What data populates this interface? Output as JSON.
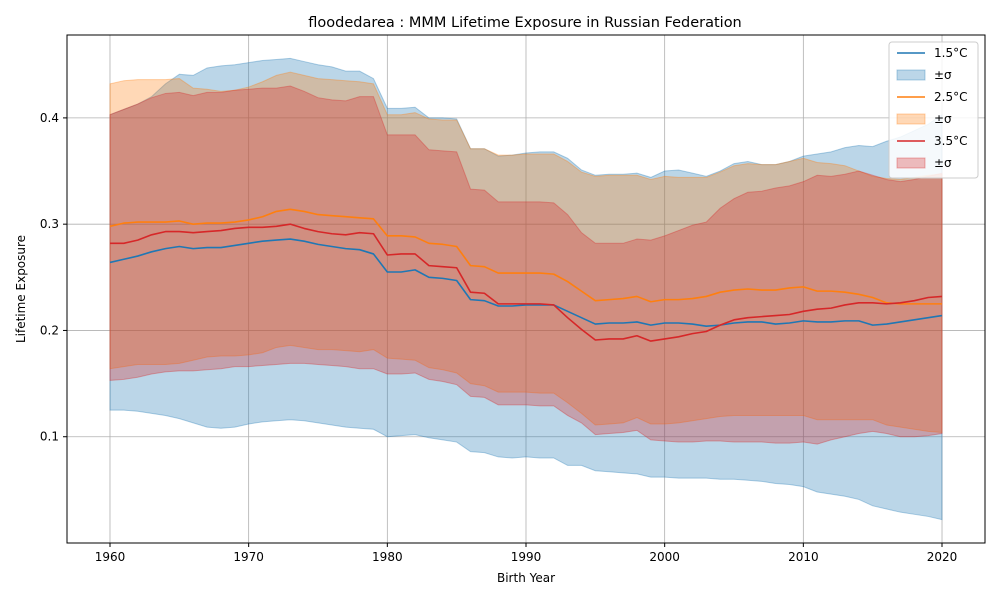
{
  "chart_data": {
    "type": "line",
    "title": "floodedarea : MMM Lifetime Exposure in Russian Federation",
    "xlabel": "Birth Year",
    "ylabel": "Lifetime Exposure",
    "xlim": [
      1956.9,
      2023.1
    ],
    "ylim": [
      0.0,
      0.478
    ],
    "grid": true,
    "legend_position": "top-right",
    "x_ticks": [
      1960,
      1970,
      1980,
      1990,
      2000,
      2010,
      2020
    ],
    "x_tick_labels": [
      "1960",
      "1970",
      "1980",
      "1990",
      "2000",
      "2010",
      "2020"
    ],
    "y_ticks": [
      0.1,
      0.2,
      0.3,
      0.4
    ],
    "y_tick_labels": [
      "0.1",
      "0.2",
      "0.3",
      "0.4"
    ],
    "x": [
      1960,
      1961,
      1962,
      1963,
      1964,
      1965,
      1966,
      1967,
      1968,
      1969,
      1970,
      1971,
      1972,
      1973,
      1974,
      1975,
      1976,
      1977,
      1978,
      1979,
      1980,
      1981,
      1982,
      1983,
      1984,
      1985,
      1986,
      1987,
      1988,
      1989,
      1990,
      1991,
      1992,
      1993,
      1994,
      1995,
      1996,
      1997,
      1998,
      1999,
      2000,
      2001,
      2002,
      2003,
      2004,
      2005,
      2006,
      2007,
      2008,
      2009,
      2010,
      2011,
      2012,
      2013,
      2014,
      2015,
      2016,
      2017,
      2018,
      2019,
      2020
    ],
    "series": [
      {
        "name": "1.5°C",
        "color": "#1f77b4",
        "band_label": "±σ",
        "mean": [
          0.264,
          0.267,
          0.27,
          0.274,
          0.277,
          0.279,
          0.277,
          0.278,
          0.278,
          0.28,
          0.282,
          0.284,
          0.285,
          0.286,
          0.284,
          0.281,
          0.279,
          0.277,
          0.276,
          0.272,
          0.255,
          0.255,
          0.257,
          0.25,
          0.249,
          0.247,
          0.229,
          0.228,
          0.223,
          0.223,
          0.224,
          0.224,
          0.224,
          0.218,
          0.212,
          0.206,
          0.207,
          0.207,
          0.208,
          0.205,
          0.207,
          0.207,
          0.206,
          0.204,
          0.205,
          0.207,
          0.208,
          0.208,
          0.206,
          0.207,
          0.209,
          0.208,
          0.208,
          0.209,
          0.209,
          0.205,
          0.206,
          0.208,
          0.21,
          0.212,
          0.214
        ],
        "upper": [
          0.403,
          0.408,
          0.413,
          0.42,
          0.432,
          0.441,
          0.44,
          0.447,
          0.449,
          0.45,
          0.452,
          0.454,
          0.455,
          0.456,
          0.453,
          0.45,
          0.448,
          0.444,
          0.444,
          0.437,
          0.409,
          0.409,
          0.41,
          0.4,
          0.4,
          0.399,
          0.371,
          0.371,
          0.364,
          0.365,
          0.367,
          0.368,
          0.368,
          0.362,
          0.351,
          0.346,
          0.347,
          0.347,
          0.348,
          0.344,
          0.35,
          0.351,
          0.348,
          0.345,
          0.35,
          0.357,
          0.359,
          0.356,
          0.356,
          0.359,
          0.364,
          0.366,
          0.368,
          0.372,
          0.374,
          0.373,
          0.378,
          0.382,
          0.388,
          0.394,
          0.403
        ],
        "lower": [
          0.125,
          0.125,
          0.124,
          0.122,
          0.12,
          0.117,
          0.113,
          0.109,
          0.108,
          0.109,
          0.112,
          0.114,
          0.115,
          0.116,
          0.115,
          0.113,
          0.111,
          0.109,
          0.108,
          0.107,
          0.1,
          0.101,
          0.102,
          0.099,
          0.097,
          0.095,
          0.086,
          0.085,
          0.081,
          0.08,
          0.081,
          0.08,
          0.08,
          0.073,
          0.073,
          0.068,
          0.067,
          0.066,
          0.065,
          0.062,
          0.062,
          0.061,
          0.061,
          0.061,
          0.06,
          0.06,
          0.059,
          0.058,
          0.056,
          0.055,
          0.053,
          0.048,
          0.046,
          0.044,
          0.041,
          0.035,
          0.032,
          0.029,
          0.027,
          0.025,
          0.022
        ]
      },
      {
        "name": "2.5°C",
        "color": "#ff7f0e",
        "band_label": "±σ",
        "mean": [
          0.298,
          0.301,
          0.302,
          0.302,
          0.302,
          0.303,
          0.3,
          0.301,
          0.301,
          0.302,
          0.304,
          0.307,
          0.312,
          0.314,
          0.312,
          0.309,
          0.308,
          0.307,
          0.306,
          0.305,
          0.289,
          0.289,
          0.288,
          0.282,
          0.281,
          0.279,
          0.261,
          0.26,
          0.254,
          0.254,
          0.254,
          0.254,
          0.253,
          0.246,
          0.237,
          0.228,
          0.229,
          0.23,
          0.232,
          0.227,
          0.229,
          0.229,
          0.23,
          0.232,
          0.236,
          0.238,
          0.239,
          0.238,
          0.238,
          0.24,
          0.241,
          0.237,
          0.237,
          0.236,
          0.234,
          0.231,
          0.226,
          0.225,
          0.225,
          0.225,
          0.225
        ],
        "upper": [
          0.432,
          0.435,
          0.436,
          0.436,
          0.436,
          0.437,
          0.428,
          0.427,
          0.425,
          0.426,
          0.429,
          0.434,
          0.44,
          0.443,
          0.44,
          0.437,
          0.436,
          0.435,
          0.434,
          0.432,
          0.403,
          0.403,
          0.405,
          0.399,
          0.398,
          0.398,
          0.371,
          0.371,
          0.365,
          0.365,
          0.366,
          0.366,
          0.366,
          0.359,
          0.349,
          0.345,
          0.346,
          0.346,
          0.346,
          0.342,
          0.345,
          0.344,
          0.344,
          0.344,
          0.349,
          0.355,
          0.357,
          0.356,
          0.356,
          0.359,
          0.362,
          0.358,
          0.357,
          0.355,
          0.35,
          0.345,
          0.343,
          0.342,
          0.344,
          0.346,
          0.347
        ],
        "lower": [
          0.164,
          0.166,
          0.168,
          0.168,
          0.168,
          0.169,
          0.172,
          0.175,
          0.176,
          0.176,
          0.177,
          0.179,
          0.184,
          0.186,
          0.184,
          0.182,
          0.182,
          0.181,
          0.18,
          0.182,
          0.174,
          0.173,
          0.172,
          0.165,
          0.163,
          0.16,
          0.15,
          0.148,
          0.142,
          0.142,
          0.142,
          0.141,
          0.141,
          0.132,
          0.122,
          0.111,
          0.112,
          0.113,
          0.118,
          0.112,
          0.112,
          0.113,
          0.115,
          0.117,
          0.119,
          0.12,
          0.12,
          0.12,
          0.12,
          0.12,
          0.12,
          0.116,
          0.116,
          0.116,
          0.116,
          0.116,
          0.111,
          0.109,
          0.107,
          0.105,
          0.104
        ]
      },
      {
        "name": "3.5°C",
        "color": "#d62728",
        "band_label": "±σ",
        "mean": [
          0.282,
          0.282,
          0.285,
          0.29,
          0.293,
          0.293,
          0.292,
          0.293,
          0.294,
          0.296,
          0.297,
          0.297,
          0.298,
          0.3,
          0.296,
          0.293,
          0.291,
          0.29,
          0.292,
          0.291,
          0.271,
          0.272,
          0.272,
          0.261,
          0.26,
          0.259,
          0.236,
          0.235,
          0.225,
          0.225,
          0.225,
          0.225,
          0.224,
          0.212,
          0.201,
          0.191,
          0.192,
          0.192,
          0.195,
          0.19,
          0.192,
          0.194,
          0.197,
          0.199,
          0.205,
          0.21,
          0.212,
          0.213,
          0.214,
          0.215,
          0.218,
          0.22,
          0.221,
          0.224,
          0.226,
          0.226,
          0.225,
          0.226,
          0.228,
          0.231,
          0.232
        ],
        "upper": [
          0.403,
          0.408,
          0.413,
          0.419,
          0.423,
          0.424,
          0.421,
          0.424,
          0.424,
          0.426,
          0.427,
          0.428,
          0.428,
          0.43,
          0.425,
          0.419,
          0.417,
          0.416,
          0.42,
          0.42,
          0.384,
          0.384,
          0.384,
          0.37,
          0.369,
          0.368,
          0.333,
          0.332,
          0.321,
          0.321,
          0.321,
          0.321,
          0.32,
          0.309,
          0.292,
          0.282,
          0.282,
          0.282,
          0.286,
          0.285,
          0.289,
          0.294,
          0.299,
          0.302,
          0.315,
          0.324,
          0.33,
          0.331,
          0.334,
          0.336,
          0.34,
          0.346,
          0.345,
          0.347,
          0.35,
          0.346,
          0.342,
          0.34,
          0.342,
          0.345,
          0.348
        ],
        "lower": [
          0.153,
          0.154,
          0.156,
          0.159,
          0.161,
          0.162,
          0.162,
          0.163,
          0.164,
          0.166,
          0.166,
          0.167,
          0.168,
          0.169,
          0.169,
          0.168,
          0.167,
          0.166,
          0.164,
          0.164,
          0.159,
          0.159,
          0.16,
          0.154,
          0.152,
          0.149,
          0.138,
          0.137,
          0.13,
          0.13,
          0.13,
          0.129,
          0.129,
          0.12,
          0.113,
          0.102,
          0.103,
          0.104,
          0.106,
          0.097,
          0.096,
          0.095,
          0.095,
          0.096,
          0.096,
          0.095,
          0.095,
          0.095,
          0.094,
          0.094,
          0.095,
          0.093,
          0.097,
          0.1,
          0.103,
          0.105,
          0.103,
          0.1,
          0.1,
          0.101,
          0.103
        ]
      }
    ]
  }
}
